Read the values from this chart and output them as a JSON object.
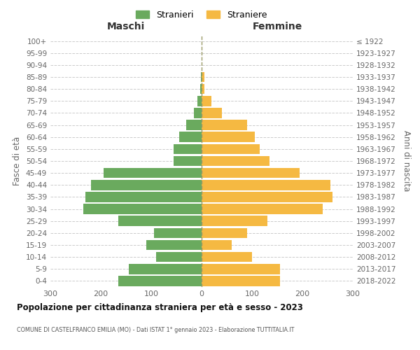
{
  "age_groups": [
    "0-4",
    "5-9",
    "10-14",
    "15-19",
    "20-24",
    "25-29",
    "30-34",
    "35-39",
    "40-44",
    "45-49",
    "50-54",
    "55-59",
    "60-64",
    "65-69",
    "70-74",
    "75-79",
    "80-84",
    "85-89",
    "90-94",
    "95-99",
    "100+"
  ],
  "birth_years": [
    "2018-2022",
    "2013-2017",
    "2008-2012",
    "2003-2007",
    "1998-2002",
    "1993-1997",
    "1988-1992",
    "1983-1987",
    "1978-1982",
    "1973-1977",
    "1968-1972",
    "1963-1967",
    "1958-1962",
    "1953-1957",
    "1948-1952",
    "1943-1947",
    "1938-1942",
    "1933-1937",
    "1928-1932",
    "1923-1927",
    "≤ 1922"
  ],
  "maschi": [
    165,
    145,
    90,
    110,
    95,
    165,
    235,
    230,
    220,
    195,
    55,
    55,
    45,
    30,
    15,
    8,
    3,
    2,
    0,
    0,
    0
  ],
  "femmine": [
    155,
    155,
    100,
    60,
    90,
    130,
    240,
    260,
    255,
    195,
    135,
    115,
    105,
    90,
    40,
    20,
    5,
    5,
    0,
    0,
    0
  ],
  "color_maschi": "#6aaa5e",
  "color_femmine": "#f5b942",
  "title_main": "Popolazione per cittadinanza straniera per età e sesso - 2023",
  "subtitle": "COMUNE DI CASTELFRANCO EMILIA (MO) - Dati ISTAT 1° gennaio 2023 - Elaborazione TUTTITALIA.IT",
  "legend_maschi": "Stranieri",
  "legend_femmine": "Straniere",
  "xlabel_left": "Maschi",
  "xlabel_right": "Femmine",
  "ylabel_left": "Fasce di età",
  "ylabel_right": "Anni di nascita",
  "xlim": 300,
  "bar_height": 0.85
}
